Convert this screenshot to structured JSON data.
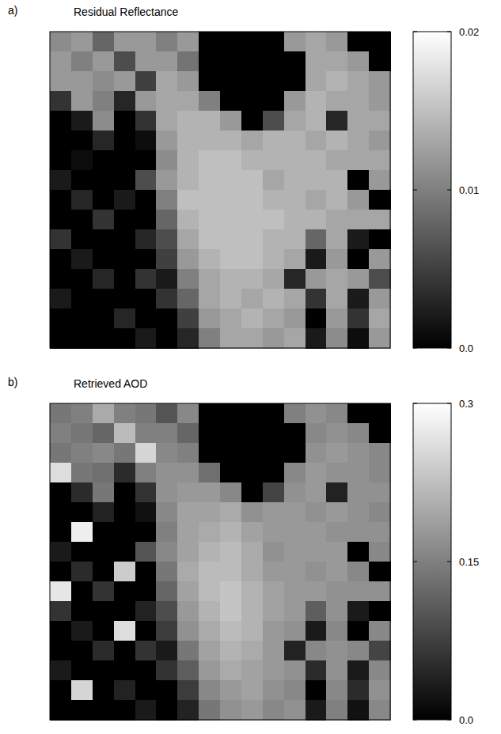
{
  "chart_data": [
    {
      "type": "heatmap",
      "label": "a)",
      "title": "Residual Reflectance",
      "cells": [
        [
          0.011,
          0.012,
          0.008,
          0.012,
          0.012,
          0.01,
          0.012,
          0,
          0,
          0,
          0,
          0.012,
          0.013,
          0.012,
          0,
          0
        ],
        [
          0.012,
          0.01,
          0.012,
          0.006,
          0.012,
          0.012,
          0.009,
          0,
          0,
          0,
          0,
          0,
          0.013,
          0.013,
          0.012,
          0
        ],
        [
          0.012,
          0.012,
          0.011,
          0.012,
          0.005,
          0.013,
          0.012,
          0,
          0,
          0,
          0,
          0,
          0.013,
          0.014,
          0.013,
          0.012
        ],
        [
          0.004,
          0.012,
          0.01,
          0.003,
          0.012,
          0.013,
          0.013,
          0.01,
          0,
          0,
          0,
          0.012,
          0.014,
          0.013,
          0.013,
          0.012
        ],
        [
          0,
          0.002,
          0.011,
          0,
          0.004,
          0.013,
          0.014,
          0.014,
          0.012,
          0,
          0.006,
          0.013,
          0.014,
          0.003,
          0.013,
          0.013
        ],
        [
          0,
          0,
          0.003,
          0,
          0.001,
          0.012,
          0.014,
          0.014,
          0.014,
          0.013,
          0.014,
          0.014,
          0.013,
          0.014,
          0.013,
          0.012
        ],
        [
          0,
          0.001,
          0,
          0,
          0,
          0.011,
          0.014,
          0.015,
          0.015,
          0.014,
          0.014,
          0.014,
          0.014,
          0.013,
          0.013,
          0.013
        ],
        [
          0.002,
          0,
          0,
          0,
          0.006,
          0.012,
          0.014,
          0.015,
          0.015,
          0.015,
          0.013,
          0.014,
          0.014,
          0.014,
          0,
          0.012
        ],
        [
          0,
          0.003,
          0,
          0.002,
          0,
          0.01,
          0.015,
          0.015,
          0.015,
          0.015,
          0.014,
          0.014,
          0.013,
          0.014,
          0.012,
          0
        ],
        [
          0,
          0,
          0.004,
          0,
          0,
          0.008,
          0.014,
          0.015,
          0.015,
          0.015,
          0.015,
          0.014,
          0.014,
          0.013,
          0.013,
          0.013
        ],
        [
          0.004,
          0,
          0,
          0,
          0.003,
          0.006,
          0.013,
          0.015,
          0.015,
          0.015,
          0.014,
          0.014,
          0.008,
          0.013,
          0.002,
          0
        ],
        [
          0,
          0.002,
          0,
          0,
          0,
          0.005,
          0.012,
          0.014,
          0.015,
          0.015,
          0.014,
          0.013,
          0.002,
          0.012,
          0,
          0.012
        ],
        [
          0,
          0,
          0.003,
          0,
          0.004,
          0.002,
          0.01,
          0.013,
          0.014,
          0.014,
          0.013,
          0.003,
          0.012,
          0.013,
          0.012,
          0.006
        ],
        [
          0.002,
          0,
          0,
          0,
          0,
          0.004,
          0.008,
          0.013,
          0.014,
          0.013,
          0.014,
          0.013,
          0.004,
          0.013,
          0.002,
          0.012
        ],
        [
          0,
          0,
          0,
          0.003,
          0,
          0,
          0.005,
          0.012,
          0.013,
          0.014,
          0.013,
          0.012,
          0,
          0.012,
          0.004,
          0.013
        ],
        [
          0,
          0,
          0,
          0,
          0.002,
          0,
          0.003,
          0.01,
          0.013,
          0.013,
          0.012,
          0.013,
          0.002,
          0.011,
          0.001,
          0.012
        ]
      ],
      "colorbar": {
        "range": [
          0,
          0.02
        ],
        "ticks": [
          {
            "value": 0,
            "label": "0.0"
          },
          0.01,
          0.02
        ]
      }
    },
    {
      "type": "heatmap",
      "label": "b)",
      "title": "Retrieved AOD",
      "cells": [
        [
          0.14,
          0.15,
          0.2,
          0.15,
          0.14,
          0.1,
          0.16,
          0,
          0,
          0,
          0,
          0.15,
          0.17,
          0.16,
          0,
          0
        ],
        [
          0.15,
          0.14,
          0.12,
          0.22,
          0.15,
          0.15,
          0.12,
          0,
          0,
          0,
          0,
          0,
          0.16,
          0.17,
          0.16,
          0
        ],
        [
          0.14,
          0.15,
          0.16,
          0.14,
          0.25,
          0.16,
          0.15,
          0,
          0,
          0,
          0,
          0,
          0.17,
          0.18,
          0.17,
          0.16
        ],
        [
          0.26,
          0.14,
          0.13,
          0.05,
          0.15,
          0.17,
          0.17,
          0.13,
          0,
          0,
          0,
          0.16,
          0.18,
          0.17,
          0.17,
          0.16
        ],
        [
          0,
          0.05,
          0.14,
          0,
          0.06,
          0.17,
          0.18,
          0.18,
          0.16,
          0,
          0.08,
          0.17,
          0.18,
          0.04,
          0.17,
          0.17
        ],
        [
          0,
          0,
          0.04,
          0,
          0.02,
          0.16,
          0.19,
          0.19,
          0.2,
          0.17,
          0.18,
          0.18,
          0.17,
          0.18,
          0.17,
          0.16
        ],
        [
          0,
          0.28,
          0,
          0,
          0,
          0.15,
          0.19,
          0.2,
          0.21,
          0.19,
          0.18,
          0.18,
          0.18,
          0.17,
          0.17,
          0.17
        ],
        [
          0.03,
          0,
          0,
          0,
          0.1,
          0.16,
          0.19,
          0.21,
          0.22,
          0.2,
          0.17,
          0.18,
          0.18,
          0.18,
          0,
          0.16
        ],
        [
          0,
          0.05,
          0,
          0.24,
          0,
          0.14,
          0.2,
          0.22,
          0.22,
          0.2,
          0.18,
          0.18,
          0.17,
          0.18,
          0.16,
          0
        ],
        [
          0.27,
          0,
          0.06,
          0,
          0,
          0.12,
          0.19,
          0.22,
          0.23,
          0.21,
          0.19,
          0.18,
          0.18,
          0.17,
          0.17,
          0.17
        ],
        [
          0.06,
          0,
          0,
          0,
          0.04,
          0.09,
          0.18,
          0.21,
          0.23,
          0.21,
          0.19,
          0.18,
          0.11,
          0.17,
          0.03,
          0
        ],
        [
          0,
          0.03,
          0,
          0.26,
          0,
          0.07,
          0.17,
          0.2,
          0.22,
          0.21,
          0.18,
          0.17,
          0.03,
          0.16,
          0,
          0.16
        ],
        [
          0,
          0,
          0.05,
          0,
          0.06,
          0.03,
          0.14,
          0.19,
          0.21,
          0.2,
          0.18,
          0.04,
          0.16,
          0.17,
          0.16,
          0.08
        ],
        [
          0.03,
          0,
          0,
          0,
          0,
          0.06,
          0.11,
          0.18,
          0.2,
          0.19,
          0.18,
          0.17,
          0.05,
          0.17,
          0.03,
          0.16
        ],
        [
          0,
          0.25,
          0,
          0.04,
          0,
          0,
          0.07,
          0.16,
          0.18,
          0.19,
          0.17,
          0.16,
          0,
          0.16,
          0.05,
          0.17
        ],
        [
          0,
          0,
          0,
          0,
          0.03,
          0,
          0.04,
          0.14,
          0.17,
          0.18,
          0.16,
          0.17,
          0.03,
          0.15,
          0.02,
          0.16
        ]
      ],
      "colorbar": {
        "range": [
          0,
          0.3
        ],
        "ticks": [
          {
            "value": 0,
            "label": "0.0"
          },
          0.15,
          0.3
        ]
      }
    }
  ]
}
